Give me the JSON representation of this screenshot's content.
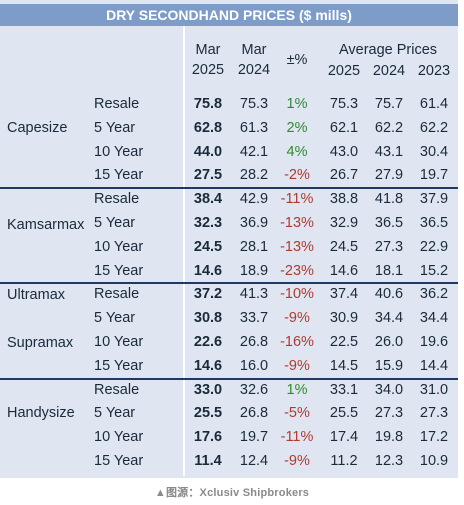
{
  "chart_data": {
    "type": "table",
    "title": "DRY SECONDHAND PRICES ($ mills)",
    "headers": {
      "mar2025": [
        "Mar",
        "2025"
      ],
      "mar2024": [
        "Mar",
        "2024"
      ],
      "pct": "±%",
      "avg_title": "Average Prices",
      "avg_years": [
        "2025",
        "2024",
        "2023"
      ]
    },
    "groups": [
      {
        "label": "Capesize",
        "rows": [
          {
            "sub": "Resale",
            "mar2025": "75.8",
            "mar2024": "75.3",
            "pct": "1%",
            "avg2025": "75.3",
            "avg2024": "75.7",
            "avg2023": "61.4"
          },
          {
            "sub": "5 Year",
            "mar2025": "62.8",
            "mar2024": "61.3",
            "pct": "2%",
            "avg2025": "62.1",
            "avg2024": "62.2",
            "avg2023": "62.2"
          },
          {
            "sub": "10 Year",
            "mar2025": "44.0",
            "mar2024": "42.1",
            "pct": "4%",
            "avg2025": "43.0",
            "avg2024": "43.1",
            "avg2023": "30.4"
          },
          {
            "sub": "15 Year",
            "mar2025": "27.5",
            "mar2024": "28.2",
            "pct": "-2%",
            "avg2025": "26.7",
            "avg2024": "27.9",
            "avg2023": "19.7"
          }
        ]
      },
      {
        "label": "Kamsarmax",
        "rows": [
          {
            "sub": "Resale",
            "mar2025": "38.4",
            "mar2024": "42.9",
            "pct": "-11%",
            "avg2025": "38.8",
            "avg2024": "41.8",
            "avg2023": "37.9"
          },
          {
            "sub": "5 Year",
            "mar2025": "32.3",
            "mar2024": "36.9",
            "pct": "-13%",
            "avg2025": "32.9",
            "avg2024": "36.5",
            "avg2023": "36.5"
          },
          {
            "sub": "10 Year",
            "mar2025": "24.5",
            "mar2024": "28.1",
            "pct": "-13%",
            "avg2025": "24.5",
            "avg2024": "27.3",
            "avg2023": "22.9"
          },
          {
            "sub": "15 Year",
            "mar2025": "14.6",
            "mar2024": "18.9",
            "pct": "-23%",
            "avg2025": "14.6",
            "avg2024": "18.1",
            "avg2023": "15.2"
          }
        ]
      },
      {
        "label": "Ultramax",
        "rows": [
          {
            "sub": "Resale",
            "mar2025": "37.2",
            "mar2024": "41.3",
            "pct": "-10%",
            "avg2025": "37.4",
            "avg2024": "40.6",
            "avg2023": "36.2"
          },
          {
            "sub": "5 Year",
            "mar2025": "30.8",
            "mar2024": "33.7",
            "pct": "-9%",
            "avg2025": "30.9",
            "avg2024": "34.4",
            "avg2023": "34.4"
          },
          {
            "sub": "10 Year",
            "mar2025": "22.6",
            "mar2024": "26.8",
            "pct": "-16%",
            "avg2025": "22.5",
            "avg2024": "26.0",
            "avg2023": "19.6"
          }
        ]
      },
      {
        "label": "Supramax",
        "rows": [
          {
            "sub": "15 Year",
            "mar2025": "14.6",
            "mar2024": "16.0",
            "pct": "-9%",
            "avg2025": "14.5",
            "avg2024": "15.9",
            "avg2023": "14.4"
          }
        ]
      },
      {
        "label": "Handysize",
        "rows": [
          {
            "sub": "Resale",
            "mar2025": "33.0",
            "mar2024": "32.6",
            "pct": "1%",
            "avg2025": "33.1",
            "avg2024": "34.0",
            "avg2023": "31.0"
          },
          {
            "sub": "5 Year",
            "mar2025": "25.5",
            "mar2024": "26.8",
            "pct": "-5%",
            "avg2025": "25.5",
            "avg2024": "27.3",
            "avg2023": "27.3"
          },
          {
            "sub": "10 Year",
            "mar2025": "17.6",
            "mar2024": "19.7",
            "pct": "-11%",
            "avg2025": "17.4",
            "avg2024": "19.8",
            "avg2023": "17.2"
          },
          {
            "sub": "15 Year",
            "mar2025": "11.4",
            "mar2024": "12.4",
            "pct": "-9%",
            "avg2025": "11.2",
            "avg2024": "12.3",
            "avg2023": "10.9"
          }
        ]
      }
    ],
    "colors": {
      "header_bar": "#7e9cc8",
      "panel": "#dfe6f2",
      "positive": "#2e8b2e",
      "negative": "#b03a2e",
      "divider": "#1f3864"
    }
  },
  "source": "▲图源：Xclusiv Shipbrokers"
}
